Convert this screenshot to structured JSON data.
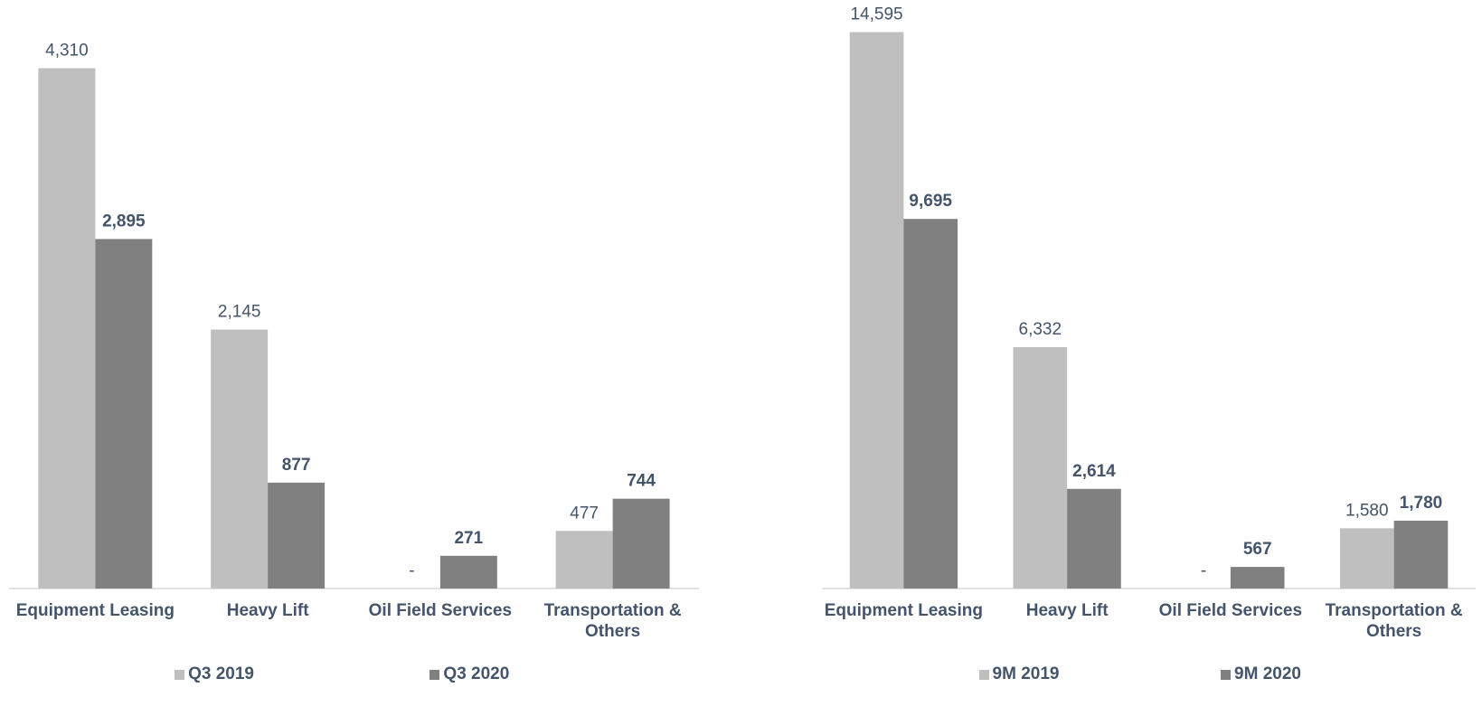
{
  "chart_data": [
    {
      "type": "bar",
      "categories": [
        "Equipment Leasing",
        "Heavy Lift",
        "Oil Field Services",
        "Transportation & Others"
      ],
      "series": [
        {
          "name": "Q3 2019",
          "color": "#bfbfbf",
          "values": [
            4310,
            2145,
            0,
            477
          ],
          "value_labels": [
            "4,310",
            "2,145",
            "-",
            "477"
          ]
        },
        {
          "name": "Q3 2020",
          "color": "#808080",
          "values": [
            2895,
            877,
            271,
            744
          ],
          "value_labels": [
            "2,895",
            "877",
            "271",
            "744"
          ]
        }
      ],
      "ylim": [
        0,
        4800
      ]
    },
    {
      "type": "bar",
      "categories": [
        "Equipment Leasing",
        "Heavy Lift",
        "Oil Field Services",
        "Transportation & Others"
      ],
      "series": [
        {
          "name": "9M 2019",
          "color": "#bfbfbf",
          "values": [
            14595,
            6332,
            0,
            1580
          ],
          "value_labels": [
            "14,595",
            "6,332",
            "-",
            "1,580"
          ]
        },
        {
          "name": "9M 2020",
          "color": "#808080",
          "values": [
            9695,
            2614,
            567,
            1780
          ],
          "value_labels": [
            "9,695",
            "2,614",
            "567",
            "1,780"
          ]
        }
      ],
      "ylim": [
        0,
        15200
      ]
    }
  ]
}
